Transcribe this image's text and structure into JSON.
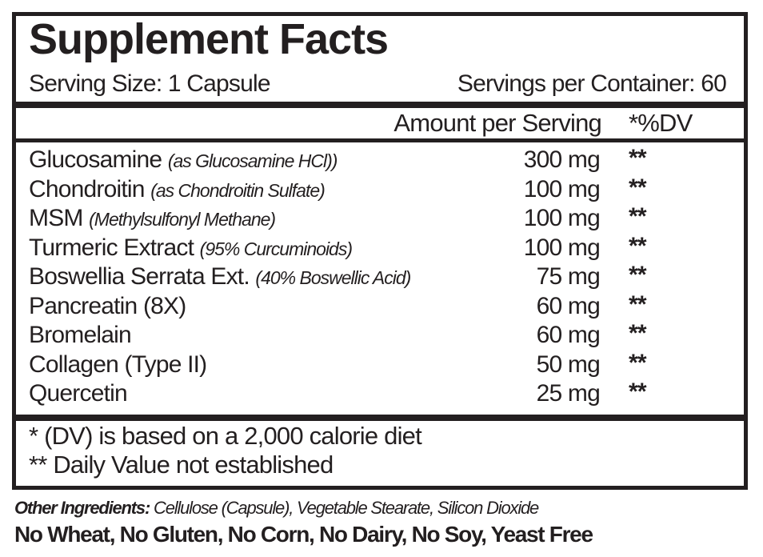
{
  "title": "Supplement Facts",
  "serving_size": "Serving Size: 1 Capsule",
  "servings_per_container": "Servings per Container: 60",
  "header": {
    "amount": "Amount per Serving",
    "dv": "*%DV"
  },
  "rows": [
    {
      "name": "Glucosamine",
      "detail": "(as Glucosamine HCl))",
      "amount": "300 mg",
      "dv": "**"
    },
    {
      "name": "Chondroitin",
      "detail": "(as Chondroitin Sulfate)",
      "amount": "100 mg",
      "dv": "**"
    },
    {
      "name": "MSM",
      "detail": "(Methylsulfonyl Methane)",
      "amount": "100 mg",
      "dv": "**"
    },
    {
      "name": "Turmeric Extract",
      "detail": "(95% Curcuminoids)",
      "amount": "100 mg",
      "dv": "**"
    },
    {
      "name": "Boswellia Serrata Ext.",
      "detail": "(40% Boswellic Acid)",
      "amount": "75 mg",
      "dv": "**"
    },
    {
      "name": "Pancreatin (8X)",
      "detail": "",
      "amount": "60 mg",
      "dv": "**"
    },
    {
      "name": "Bromelain",
      "detail": "",
      "amount": "60 mg",
      "dv": "**"
    },
    {
      "name": "Collagen (Type II)",
      "detail": "",
      "amount": "50 mg",
      "dv": "**"
    },
    {
      "name": "Quercetin",
      "detail": "",
      "amount": "25 mg",
      "dv": "**"
    }
  ],
  "footnotes": [
    "* (DV) is based on a 2,000 calorie diet",
    "** Daily Value not established"
  ],
  "other_ingredients": {
    "label": "Other Ingredients:",
    "value": "Cellulose (Capsule), Vegetable Stearate, Silicon Dioxide"
  },
  "allergen_statement": "No Wheat, No Gluten, No Corn, No Dairy, No Soy, Yeast Free"
}
